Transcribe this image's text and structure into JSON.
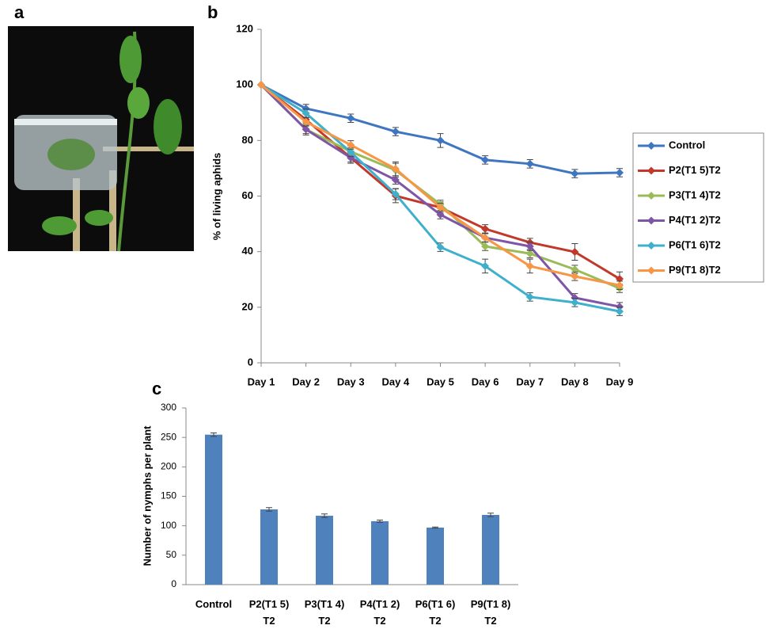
{
  "photo": {
    "panel": "a"
  },
  "chart_data": [
    {
      "type": "line",
      "panel": "b",
      "ylabel": "% of living aphids",
      "categories": [
        "Day 1",
        "Day 2",
        "Day 3",
        "Day 4",
        "Day 5",
        "Day 6",
        "Day 7",
        "Day 8",
        "Day 9"
      ],
      "ylim": [
        0,
        120
      ],
      "yticks": [
        0,
        20,
        40,
        60,
        80,
        100,
        120
      ],
      "legend": "right",
      "series": [
        {
          "name": "Control",
          "color": "#3f76c2",
          "values": [
            100,
            91.5,
            88,
            83.2,
            80,
            73,
            71.6,
            68.1,
            68.4
          ],
          "errors": [
            0,
            1.5,
            1.5,
            1.5,
            2.5,
            1.5,
            1.5,
            1.5,
            1.5
          ]
        },
        {
          "name": "P2(T1 5)T2",
          "color": "#c0392b",
          "values": [
            100,
            87.5,
            73.8,
            60.1,
            55.9,
            48.2,
            43.3,
            39.9,
            30.2
          ],
          "errors": [
            0,
            2,
            2,
            2.5,
            2,
            1.5,
            1.5,
            3,
            2.5
          ]
        },
        {
          "name": "P3(T1 4)T2",
          "color": "#9bbb59",
          "values": [
            100,
            84,
            76,
            69.3,
            57,
            41.9,
            39.3,
            33.6,
            26.8
          ],
          "errors": [
            0,
            2,
            2,
            2.5,
            1.5,
            1.5,
            1.5,
            1.5,
            1.5
          ]
        },
        {
          "name": "P4(T1 2)T2",
          "color": "#7f56a6",
          "values": [
            100,
            84,
            73.8,
            65.8,
            53.3,
            45,
            41.9,
            23.4,
            20.2
          ],
          "errors": [
            0,
            1.5,
            1.5,
            1.5,
            1.5,
            1.5,
            1.5,
            1.5,
            1.5
          ]
        },
        {
          "name": "P6(T1 6)T2",
          "color": "#3fb0cc",
          "values": [
            100,
            89.8,
            75.8,
            60.7,
            41.6,
            34.8,
            23.7,
            21.7,
            18.5
          ],
          "errors": [
            0,
            1.5,
            1.5,
            2,
            1.5,
            2.5,
            1.5,
            1.5,
            1.5
          ]
        },
        {
          "name": "P9(T1 8)T2",
          "color": "#f79646",
          "values": [
            100,
            86.7,
            78.4,
            69.8,
            55.9,
            45,
            34.8,
            31.1,
            27.9
          ],
          "errors": [
            0,
            1.5,
            1.5,
            2.5,
            1.5,
            1.5,
            2.5,
            1.5,
            1.5
          ]
        }
      ]
    },
    {
      "type": "bar",
      "panel": "c",
      "ylabel": "Number of nymphs per plant",
      "categories": [
        "Control",
        "P2(T1 5)\nT2",
        "P3(T1 4)\nT2",
        "P4(T1 2)\nT2",
        "P6(T1 6)\nT2",
        "P9(T1 8)\nT2"
      ],
      "values": [
        254.7,
        127.8,
        117,
        107.7,
        96.9,
        118.4
      ],
      "errors": [
        3,
        3,
        3,
        2,
        1,
        3
      ],
      "color": "#4f81bd",
      "ylim": [
        0,
        300
      ],
      "yticks": [
        0,
        50,
        100,
        150,
        200,
        250,
        300
      ]
    }
  ]
}
